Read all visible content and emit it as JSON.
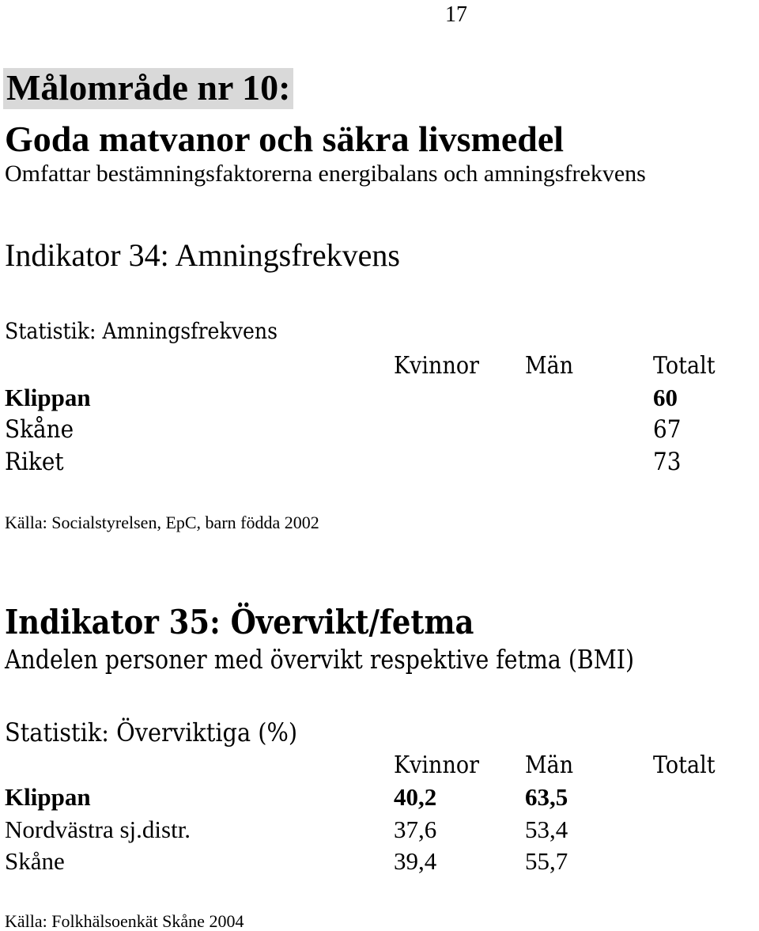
{
  "page_number": "17",
  "goal": {
    "title": "Målområde nr 10:",
    "subtitle": "Goda matvanor och säkra livsmedel",
    "scope": "Omfattar bestämningsfaktorerna energibalans och amningsfrekvens"
  },
  "indicator34": {
    "title": "Indikator 34: Amningsfrekvens",
    "statistic": "Statistik: Amningsfrekvens",
    "headers": [
      "Kvinnor",
      "Män",
      "Totalt"
    ],
    "rows": [
      {
        "region": "Klippan",
        "kvinnor": "",
        "man": "",
        "totalt": "60"
      },
      {
        "region": "Skåne",
        "kvinnor": "",
        "man": "",
        "totalt": "67"
      },
      {
        "region": "Riket",
        "kvinnor": "",
        "man": "",
        "totalt": "73"
      }
    ],
    "source": "Källa: Socialstyrelsen, EpC, barn födda 2002"
  },
  "indicator35": {
    "title": "Indikator 35: Övervikt/fetma",
    "description": "Andelen personer med övervikt respektive fetma (BMI)",
    "statistic": "Statistik: Överviktiga (%)",
    "headers": [
      "Kvinnor",
      "Män",
      "Totalt"
    ],
    "rows": [
      {
        "region": "Klippan",
        "kvinnor": "40,2",
        "man": "63,5",
        "totalt": ""
      },
      {
        "region": "Nordvästra sj.distr.",
        "kvinnor": "37,6",
        "man": "53,4",
        "totalt": ""
      },
      {
        "region": "Skåne",
        "kvinnor": "39,4",
        "man": "55,7",
        "totalt": ""
      }
    ],
    "source": "Källa: Folkhälsoenkät Skåne 2004"
  }
}
